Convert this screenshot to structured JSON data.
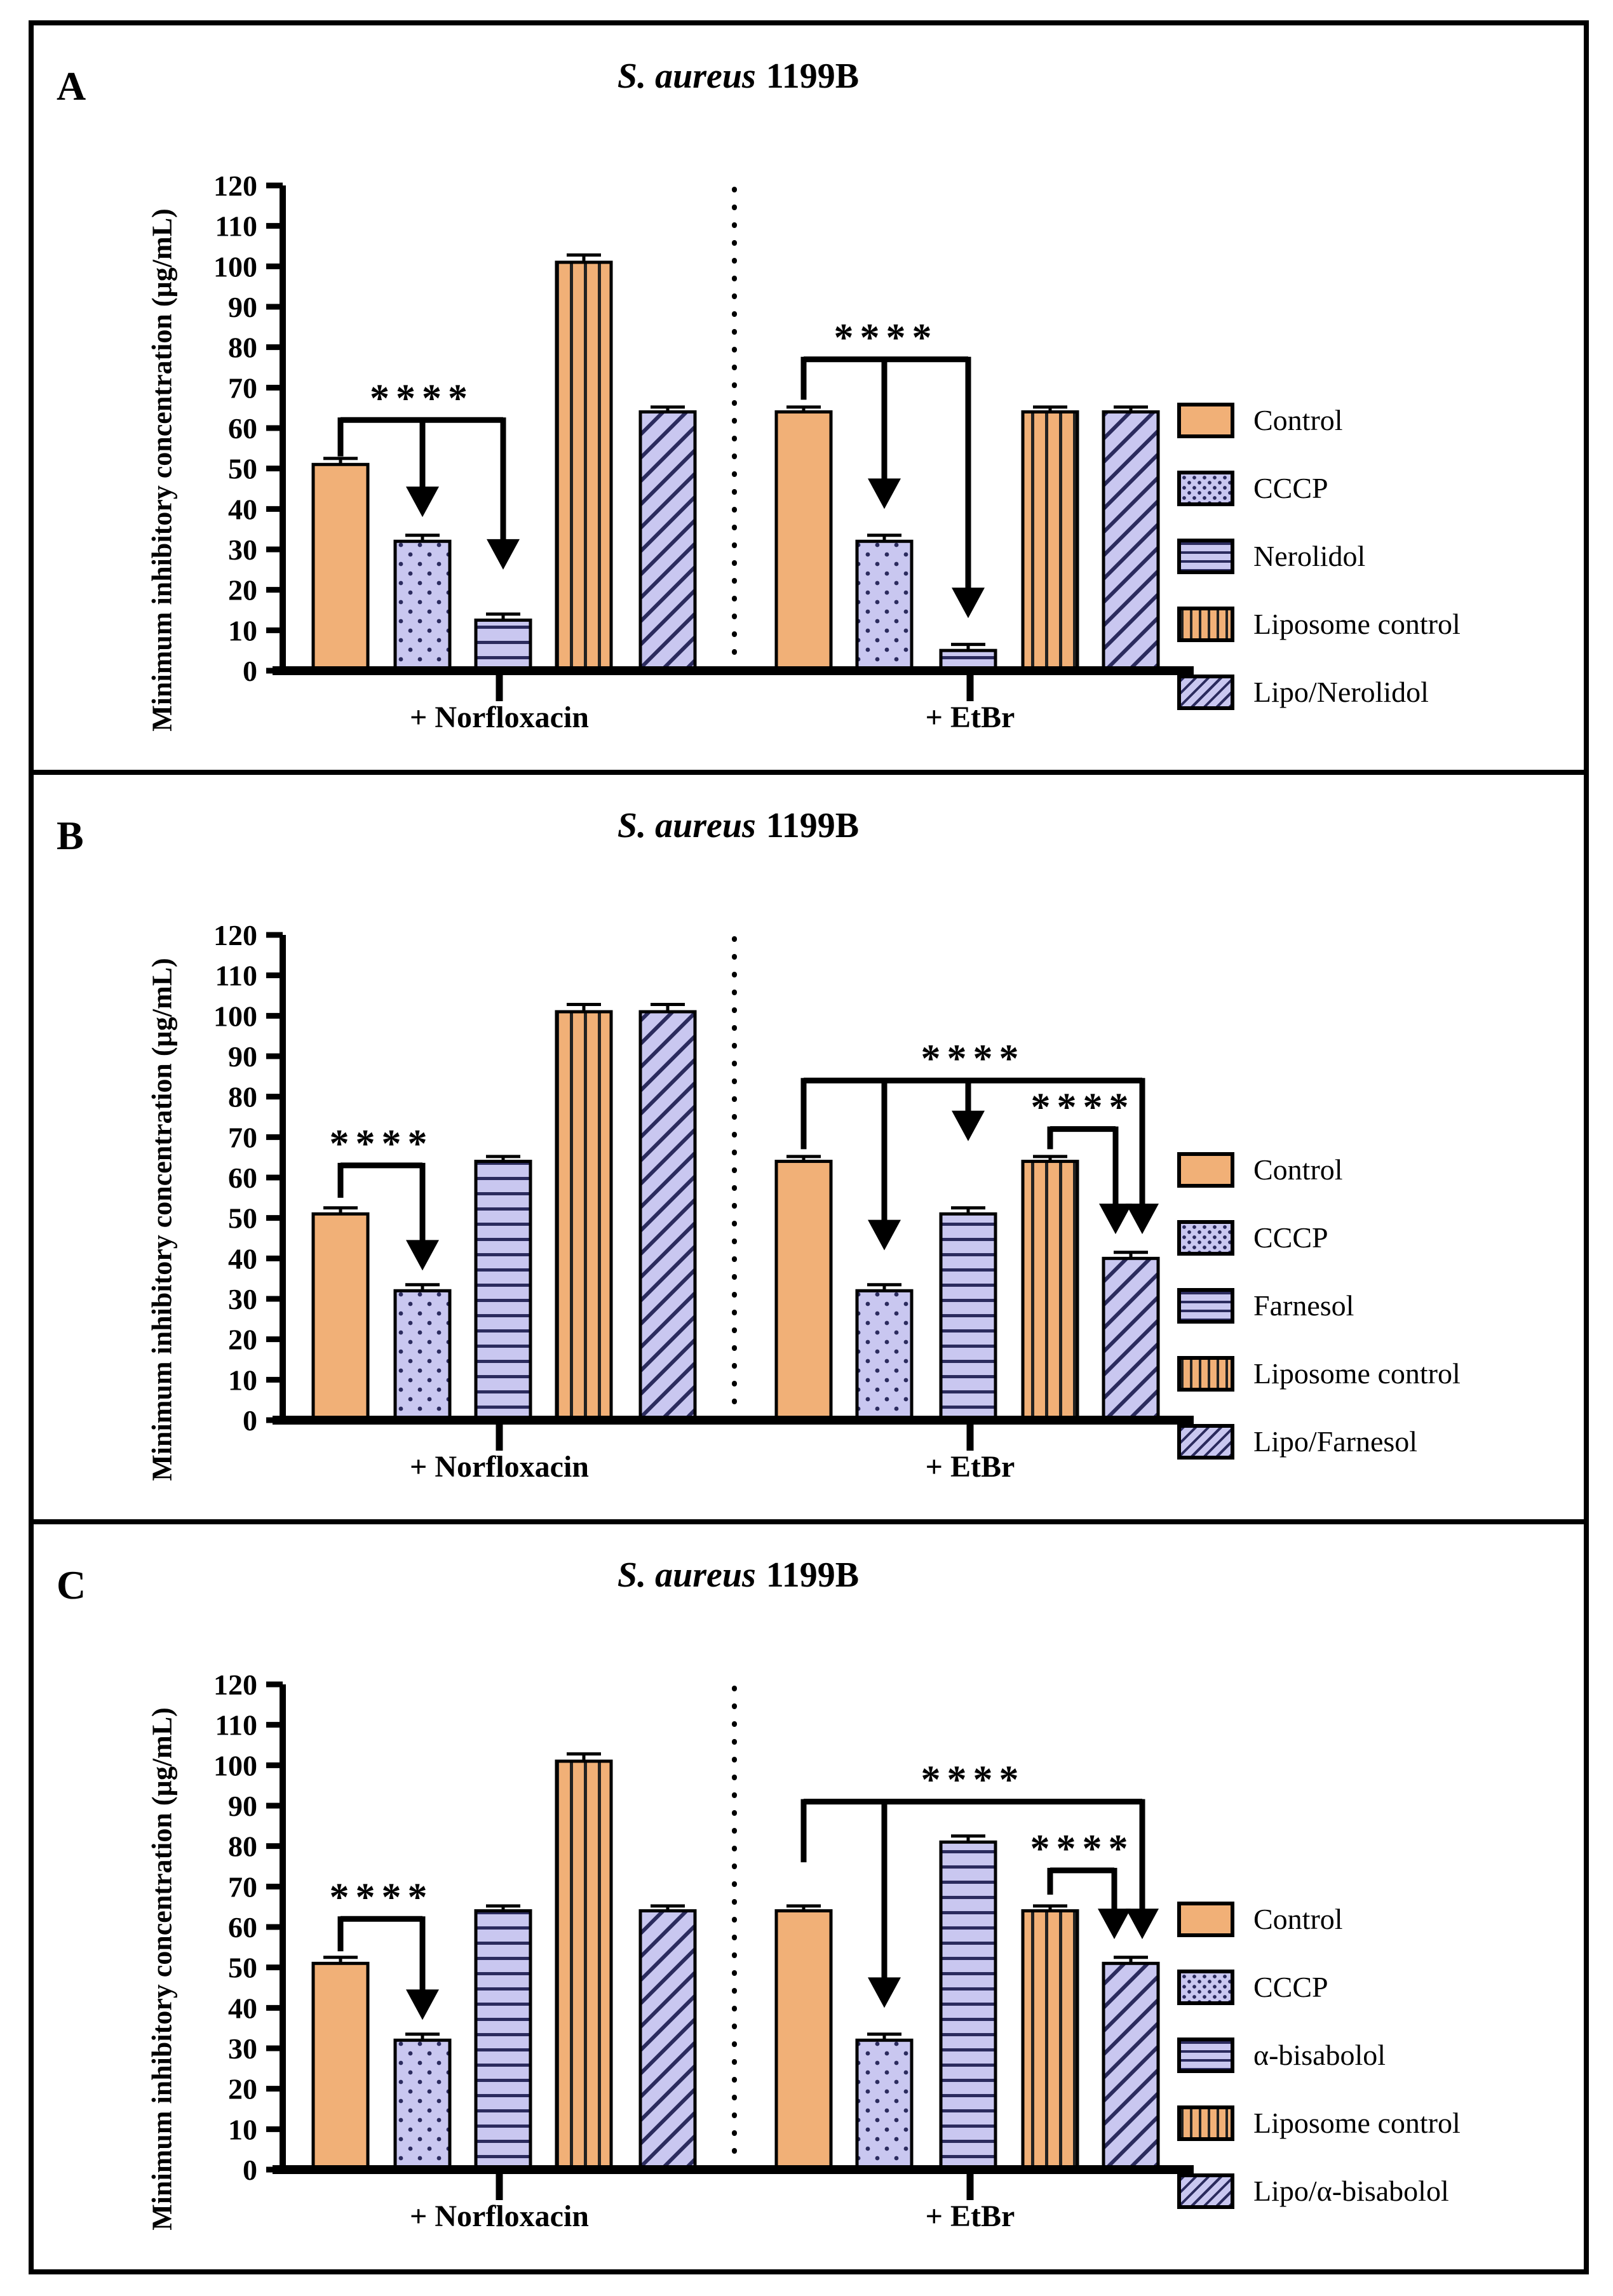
{
  "colors": {
    "orange": "#F1B077",
    "purple": "#C9C7F0",
    "pattern_navy": "#2B2B5E",
    "pattern_dark": "#222222",
    "axis_black": "#000000"
  },
  "chart_data": [
    {
      "type": "bar",
      "letter": "A",
      "title_italic": "S. aureus",
      "title_tail": "1199B",
      "ylabel": "Minimum inhibitory concentration (µg/mL)",
      "ylim": [
        0,
        120
      ],
      "yticks": [
        0,
        10,
        20,
        30,
        40,
        50,
        60,
        70,
        80,
        90,
        100,
        110,
        120
      ],
      "grid": false,
      "legend_position": "right",
      "groups": [
        {
          "label": "+ Norfloxacin",
          "values": [
            51,
            32,
            12.5,
            101,
            64
          ],
          "errors": [
            1.5,
            1.5,
            1.5,
            1.8,
            1.2
          ]
        },
        {
          "label": "+ EtBr",
          "values": [
            64,
            32,
            5,
            64,
            64
          ],
          "errors": [
            1.2,
            1.5,
            1.5,
            1.2,
            1.2
          ]
        }
      ],
      "series": [
        {
          "label": "Control",
          "pattern": "solid",
          "fill": "orange"
        },
        {
          "label": "CCCP",
          "pattern": "dots",
          "fill": "purple"
        },
        {
          "label": "Nerolidol",
          "pattern": "hlines",
          "fill": "purple"
        },
        {
          "label": "Liposome control",
          "pattern": "vlines",
          "fill": "orange"
        },
        {
          "label": "Lipo/Nerolidol",
          "pattern": "diag",
          "fill": "purple"
        }
      ],
      "significance": [
        {
          "stars": "****",
          "bar_y": 62,
          "from": {
            "g": 0,
            "s": 0,
            "drop_to": 53
          },
          "to": {
            "g": 0,
            "s": 2
          },
          "arrows": [
            {
              "g": 0,
              "s": 1,
              "tip": 38
            },
            {
              "g": 0,
              "s": 2,
              "tip": 25
            }
          ]
        },
        {
          "stars": "****",
          "bar_y": 77,
          "from": {
            "g": 1,
            "s": 0,
            "drop_to": 67
          },
          "to": {
            "g": 1,
            "s": 2
          },
          "arrows": [
            {
              "g": 1,
              "s": 1,
              "tip": 40
            },
            {
              "g": 1,
              "s": 2,
              "tip": 13
            }
          ]
        }
      ]
    },
    {
      "type": "bar",
      "letter": "B",
      "title_italic": "S. aureus",
      "title_tail": "1199B",
      "ylabel": "Minimum inhibitory concentration (µg/mL)",
      "ylim": [
        0,
        120
      ],
      "yticks": [
        0,
        10,
        20,
        30,
        40,
        50,
        60,
        70,
        80,
        90,
        100,
        110,
        120
      ],
      "grid": false,
      "legend_position": "right",
      "groups": [
        {
          "label": "+ Norfloxacin",
          "values": [
            51,
            32,
            64,
            101,
            101
          ],
          "errors": [
            1.5,
            1.5,
            1.2,
            1.8,
            1.8
          ]
        },
        {
          "label": "+ EtBr",
          "values": [
            64,
            32,
            51,
            64,
            40
          ],
          "errors": [
            1.2,
            1.5,
            1.5,
            1.2,
            1.5
          ]
        }
      ],
      "series": [
        {
          "label": "Control",
          "pattern": "solid",
          "fill": "orange"
        },
        {
          "label": "CCCP",
          "pattern": "dots",
          "fill": "purple"
        },
        {
          "label": "Farnesol",
          "pattern": "hlines",
          "fill": "purple"
        },
        {
          "label": "Liposome control",
          "pattern": "vlines",
          "fill": "orange"
        },
        {
          "label": "Lipo/Farnesol",
          "pattern": "diag",
          "fill": "purple"
        }
      ],
      "significance": [
        {
          "stars": "****",
          "bar_y": 63,
          "from": {
            "g": 0,
            "s": 0,
            "drop_to": 55
          },
          "to": {
            "g": 0,
            "s": 1
          },
          "arrows": [
            {
              "g": 0,
              "s": 1,
              "tip": 37
            }
          ]
        },
        {
          "stars": "****",
          "bar_y": 84,
          "from": {
            "g": 1,
            "s": 0,
            "drop_to": 67
          },
          "to": {
            "g": 1,
            "s": 4,
            "dx": 18
          },
          "arrows": [
            {
              "g": 1,
              "s": 1,
              "tip": 42
            },
            {
              "g": 1,
              "s": 2,
              "tip": 69
            },
            {
              "g": 1,
              "s": 4,
              "dx": 18,
              "tip": 46
            }
          ]
        },
        {
          "stars": "****",
          "bar_y": 72,
          "from": {
            "g": 1,
            "s": 3,
            "drop_to": 67
          },
          "to": {
            "g": 1,
            "s": 4,
            "dx": -24
          },
          "arrows": [
            {
              "g": 1,
              "s": 4,
              "dx": -24,
              "tip": 46
            }
          ]
        }
      ]
    },
    {
      "type": "bar",
      "letter": "C",
      "title_italic": "S. aureus",
      "title_tail": "1199B",
      "ylabel": "Minimum inhibitory concentration (µg/mL)",
      "ylim": [
        0,
        120
      ],
      "yticks": [
        0,
        10,
        20,
        30,
        40,
        50,
        60,
        70,
        80,
        90,
        100,
        110,
        120
      ],
      "grid": false,
      "legend_position": "right",
      "groups": [
        {
          "label": "+ Norfloxacin",
          "values": [
            51,
            32,
            64,
            101,
            64
          ],
          "errors": [
            1.5,
            1.5,
            1.2,
            1.8,
            1.2
          ]
        },
        {
          "label": "+ EtBr",
          "values": [
            64,
            32,
            81,
            64,
            51
          ],
          "errors": [
            1.2,
            1.5,
            1.5,
            1.2,
            1.5
          ]
        }
      ],
      "series": [
        {
          "label": "Control",
          "pattern": "solid",
          "fill": "orange"
        },
        {
          "label": "CCCP",
          "pattern": "dots",
          "fill": "purple"
        },
        {
          "label": "α-bisabolol",
          "pattern": "hlines",
          "fill": "purple"
        },
        {
          "label": "Liposome control",
          "pattern": "vlines",
          "fill": "orange"
        },
        {
          "label": "Lipo/α-bisabolol",
          "pattern": "diag",
          "fill": "purple"
        }
      ],
      "significance": [
        {
          "stars": "****",
          "bar_y": 62,
          "from": {
            "g": 0,
            "s": 0,
            "drop_to": 54
          },
          "to": {
            "g": 0,
            "s": 1
          },
          "arrows": [
            {
              "g": 0,
              "s": 1,
              "tip": 37
            }
          ]
        },
        {
          "stars": "****",
          "bar_y": 91,
          "from": {
            "g": 1,
            "s": 0,
            "drop_to": 76
          },
          "to": {
            "g": 1,
            "s": 4,
            "dx": 18
          },
          "arrows": [
            {
              "g": 1,
              "s": 1,
              "tip": 40
            },
            {
              "g": 1,
              "s": 4,
              "dx": 18,
              "tip": 57
            }
          ]
        },
        {
          "stars": "****",
          "bar_y": 74,
          "from": {
            "g": 1,
            "s": 3,
            "drop_to": 68
          },
          "to": {
            "g": 1,
            "s": 4,
            "dx": -26
          },
          "arrows": [
            {
              "g": 1,
              "s": 4,
              "dx": -26,
              "tip": 57
            }
          ]
        }
      ]
    }
  ]
}
